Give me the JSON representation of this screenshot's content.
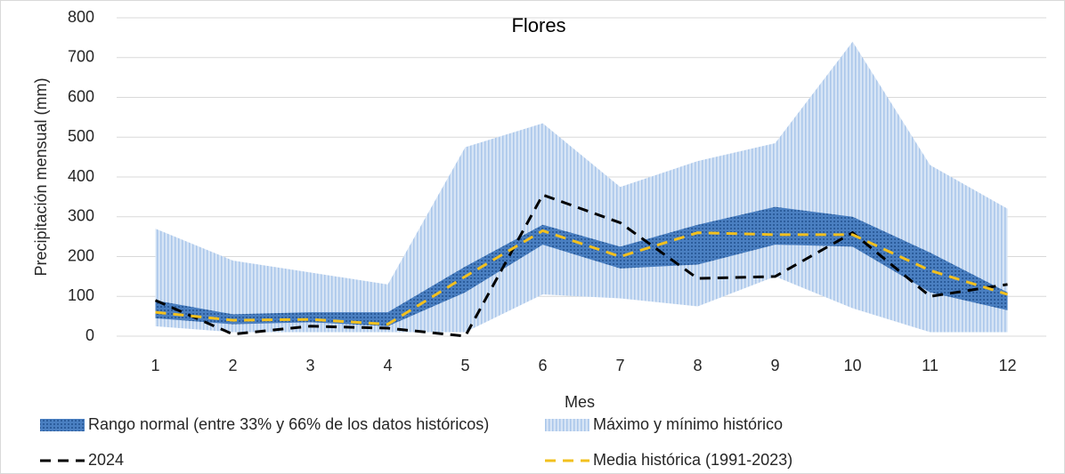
{
  "chart_data": {
    "type": "line",
    "title": "Flores",
    "x_label": "Mes",
    "y_label": "Precipitación mensual (mm)",
    "categories": [
      "1",
      "2",
      "3",
      "4",
      "5",
      "6",
      "7",
      "8",
      "9",
      "10",
      "11",
      "12"
    ],
    "ylim": [
      0,
      800
    ],
    "yticks": [
      0,
      100,
      200,
      300,
      400,
      500,
      600,
      700,
      800
    ],
    "grid": true,
    "bands": [
      {
        "name": "Rango normal (entre 33% y 66% de los datos históricos)",
        "color": "#4a7fc1",
        "low": [
          45,
          30,
          35,
          25,
          110,
          230,
          170,
          180,
          230,
          225,
          110,
          65
        ],
        "high": [
          90,
          55,
          60,
          60,
          175,
          280,
          225,
          280,
          325,
          300,
          210,
          110
        ]
      },
      {
        "name": "Máximo y mínimo histórico",
        "color": "#a9c6ea",
        "low": [
          25,
          10,
          10,
          10,
          10,
          105,
          95,
          75,
          150,
          70,
          10,
          10
        ],
        "high": [
          270,
          190,
          160,
          130,
          475,
          535,
          375,
          440,
          485,
          740,
          430,
          320
        ]
      }
    ],
    "series": [
      {
        "name": "2024",
        "color": "#000000",
        "values": [
          90,
          5,
          25,
          20,
          0,
          355,
          285,
          145,
          150,
          260,
          100,
          130
        ]
      },
      {
        "name": "Media histórica (1991-2023)",
        "color": "#f2c01e",
        "values": [
          60,
          40,
          42,
          30,
          150,
          265,
          200,
          260,
          255,
          255,
          165,
          105
        ]
      }
    ]
  }
}
